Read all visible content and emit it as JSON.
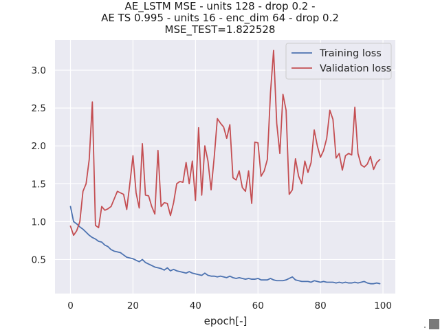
{
  "chart_data": {
    "type": "line",
    "title_lines": [
      "AE_LSTM MSE - units 128 - drop 0.2 -",
      "AE TS 0.995 - units 16 - enc_dim 64 - drop 0.2",
      "MSE_TEST=1.822528"
    ],
    "xlabel": "epoch[-]",
    "ylabel": "",
    "xlim": [
      -4.95,
      103.95
    ],
    "ylim": [
      0.05,
      3.4
    ],
    "xticks": [
      0,
      20,
      40,
      60,
      80,
      100
    ],
    "yticks": [
      0.5,
      1.0,
      1.5,
      2.0,
      2.5,
      3.0
    ],
    "ytick_labels": [
      "0.5",
      "1.0",
      "1.5",
      "2.0",
      "2.5",
      "3.0"
    ],
    "grid": true,
    "legend_position": "top-right",
    "series": [
      {
        "name": "Training loss",
        "color": "#4c72b0",
        "x": [
          0,
          1,
          2,
          3,
          4,
          5,
          6,
          7,
          8,
          9,
          10,
          11,
          12,
          13,
          14,
          15,
          16,
          17,
          18,
          19,
          20,
          21,
          22,
          23,
          24,
          25,
          26,
          27,
          28,
          29,
          30,
          31,
          32,
          33,
          34,
          35,
          36,
          37,
          38,
          39,
          40,
          41,
          42,
          43,
          44,
          45,
          46,
          47,
          48,
          49,
          50,
          51,
          52,
          53,
          54,
          55,
          56,
          57,
          58,
          59,
          60,
          61,
          62,
          63,
          64,
          65,
          66,
          67,
          68,
          69,
          70,
          71,
          72,
          73,
          74,
          75,
          76,
          77,
          78,
          79,
          80,
          81,
          82,
          83,
          84,
          85,
          86,
          87,
          88,
          89,
          90,
          91,
          92,
          93,
          94,
          95,
          96,
          97,
          98,
          99
        ],
        "values": [
          1.2,
          1.0,
          0.97,
          0.93,
          0.9,
          0.86,
          0.82,
          0.79,
          0.77,
          0.74,
          0.73,
          0.69,
          0.67,
          0.63,
          0.61,
          0.6,
          0.59,
          0.56,
          0.53,
          0.52,
          0.51,
          0.49,
          0.47,
          0.5,
          0.46,
          0.44,
          0.42,
          0.4,
          0.39,
          0.38,
          0.36,
          0.39,
          0.35,
          0.37,
          0.35,
          0.34,
          0.33,
          0.32,
          0.34,
          0.32,
          0.31,
          0.3,
          0.29,
          0.32,
          0.29,
          0.28,
          0.28,
          0.27,
          0.28,
          0.27,
          0.26,
          0.28,
          0.26,
          0.25,
          0.26,
          0.25,
          0.24,
          0.25,
          0.24,
          0.24,
          0.25,
          0.23,
          0.23,
          0.23,
          0.25,
          0.23,
          0.22,
          0.22,
          0.22,
          0.23,
          0.25,
          0.27,
          0.23,
          0.22,
          0.21,
          0.21,
          0.21,
          0.2,
          0.22,
          0.21,
          0.2,
          0.21,
          0.2,
          0.2,
          0.2,
          0.19,
          0.2,
          0.19,
          0.2,
          0.19,
          0.19,
          0.2,
          0.19,
          0.2,
          0.21,
          0.19,
          0.18,
          0.18,
          0.19,
          0.18
        ]
      },
      {
        "name": "Validation loss",
        "color": "#c44e52",
        "x": [
          0,
          1,
          2,
          3,
          4,
          5,
          6,
          7,
          8,
          9,
          10,
          11,
          12,
          13,
          14,
          15,
          16,
          17,
          18,
          19,
          20,
          21,
          22,
          23,
          24,
          25,
          26,
          27,
          28,
          29,
          30,
          31,
          32,
          33,
          34,
          35,
          36,
          37,
          38,
          39,
          40,
          41,
          42,
          43,
          44,
          45,
          46,
          47,
          48,
          49,
          50,
          51,
          52,
          53,
          54,
          55,
          56,
          57,
          58,
          59,
          60,
          61,
          62,
          63,
          64,
          65,
          66,
          67,
          68,
          69,
          70,
          71,
          72,
          73,
          74,
          75,
          76,
          77,
          78,
          79,
          80,
          81,
          82,
          83,
          84,
          85,
          86,
          87,
          88,
          89,
          90,
          91,
          92,
          93,
          94,
          95,
          96,
          97,
          98,
          99
        ],
        "values": [
          0.94,
          0.82,
          0.88,
          1.0,
          1.4,
          1.5,
          1.82,
          2.58,
          0.95,
          0.92,
          1.2,
          1.15,
          1.17,
          1.2,
          1.3,
          1.4,
          1.38,
          1.36,
          1.16,
          1.5,
          1.87,
          1.38,
          1.18,
          2.03,
          1.35,
          1.34,
          1.2,
          1.1,
          1.94,
          1.2,
          1.25,
          1.24,
          1.08,
          1.25,
          1.5,
          1.53,
          1.52,
          1.78,
          1.5,
          1.8,
          1.28,
          2.24,
          1.35,
          2.0,
          1.8,
          1.42,
          1.85,
          2.36,
          2.3,
          2.25,
          2.1,
          2.28,
          1.58,
          1.55,
          1.67,
          1.45,
          1.4,
          1.67,
          1.24,
          2.05,
          2.04,
          1.6,
          1.67,
          1.82,
          2.7,
          3.26,
          2.3,
          1.9,
          2.68,
          2.47,
          1.36,
          1.42,
          1.83,
          1.6,
          1.5,
          1.8,
          1.65,
          1.78,
          2.21,
          2.0,
          1.85,
          1.94,
          2.1,
          2.47,
          2.35,
          1.84,
          1.9,
          1.68,
          1.87,
          1.9,
          1.88,
          2.51,
          1.9,
          1.75,
          1.72,
          1.76,
          1.86,
          1.69,
          1.78,
          1.82
        ]
      }
    ]
  }
}
